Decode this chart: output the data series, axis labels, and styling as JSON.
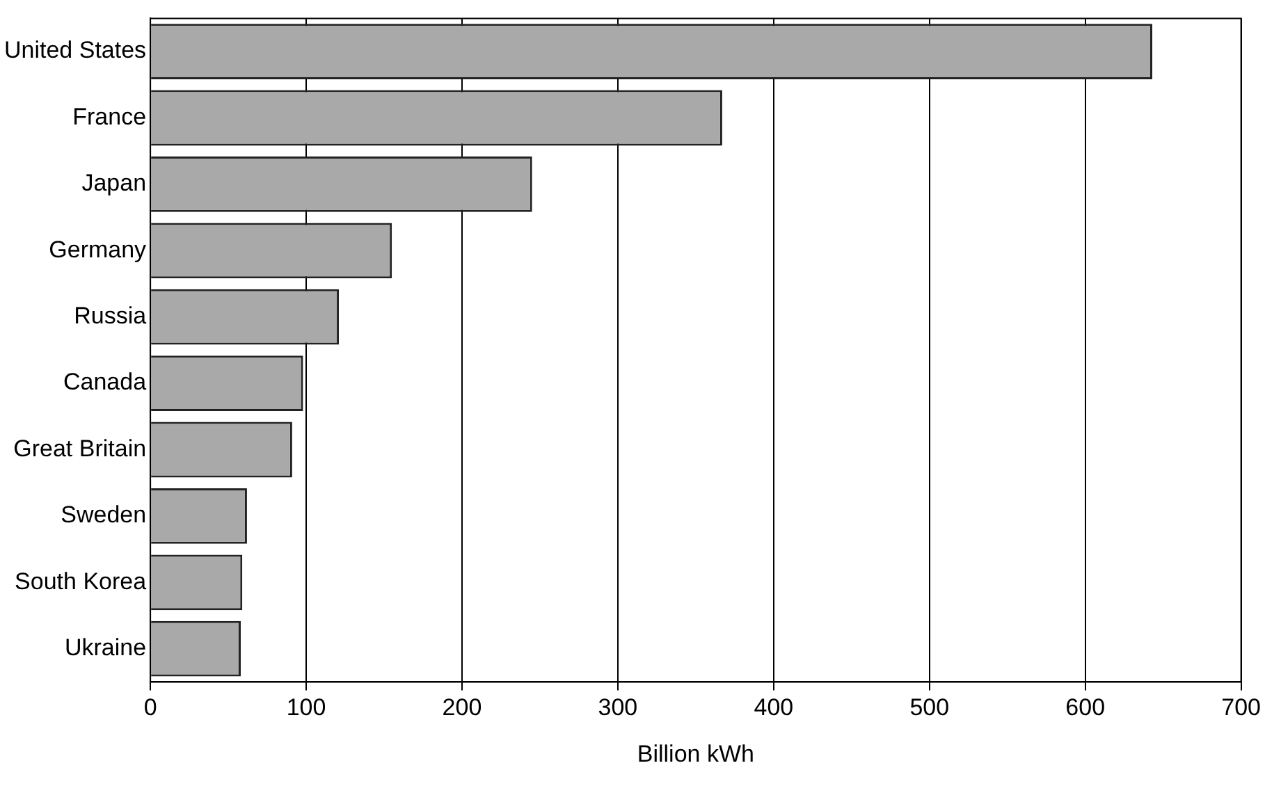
{
  "chart_data": {
    "type": "bar",
    "orientation": "horizontal",
    "xlabel": "Billion kWh",
    "categories": [
      "United States",
      "France",
      "Japan",
      "Germany",
      "Russia",
      "Canada",
      "Great Britain",
      "Sweden",
      "South Korea",
      "Ukraine"
    ],
    "values": [
      643,
      367,
      245,
      155,
      121,
      98,
      91,
      62,
      59,
      58
    ],
    "color": "#a9a9a9",
    "xlim": [
      0,
      700
    ],
    "xticks": [
      0,
      100,
      200,
      300,
      400,
      500,
      600,
      700
    ],
    "grid": "x",
    "legend": false
  }
}
